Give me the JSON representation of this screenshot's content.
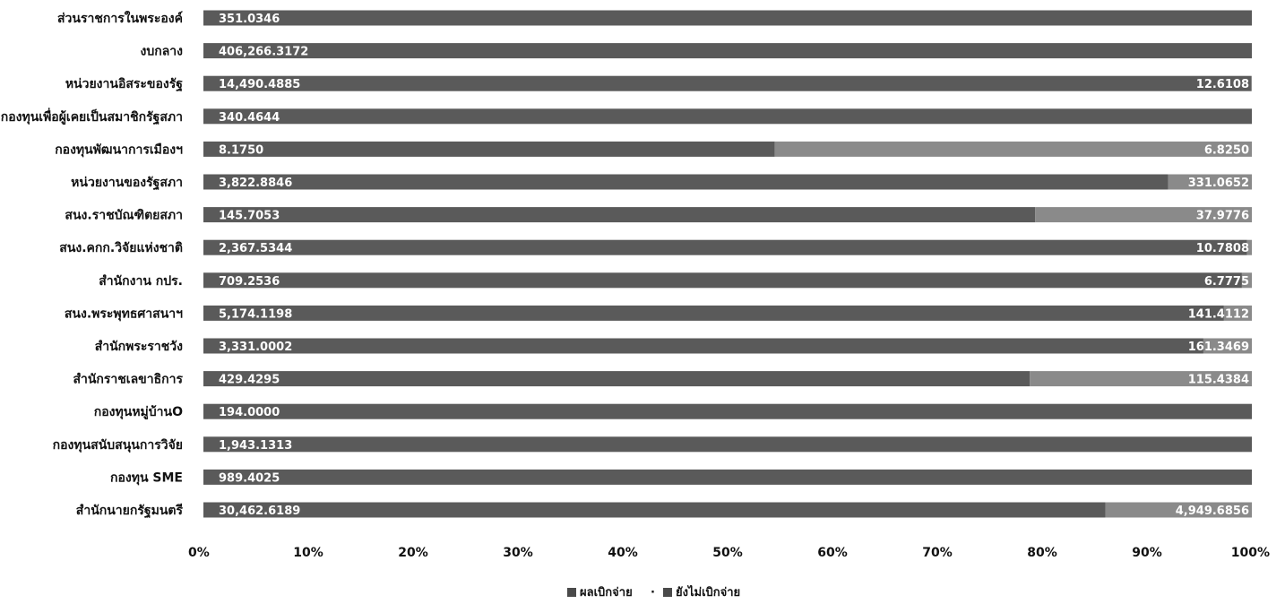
{
  "chart_data": {
    "type": "bar",
    "orientation": "horizontal",
    "stacking": "percent",
    "categories": [
      "ส่วนราชการในพระองค์",
      "งบกลาง",
      "หน่วยงานอิสระของรัฐ",
      "กองทุนเพื่อผู้เคยเป็นสมาชิกรัฐสภา",
      "กองทุนพัฒนาการเมืองฯ",
      "หน่วยงานของรัฐสภา",
      "สนง.ราชบัณฑิตยสภา",
      "สนง.คกก.วิจัยแห่งชาติ",
      "สำนักงาน กปร.",
      "สนง.พระพุทธศาสนาฯ",
      "สำนักพระราชวัง",
      "สำนักราชเลขาธิการ",
      "กองทุนหมู่บ้านO",
      "กองทุนสนับสนุนการวิจัย",
      "กองทุน SME",
      "สำนักนายกรัฐมนตรี"
    ],
    "series": [
      {
        "name": "ผลเบิกจ่าย",
        "color": "#5a5a5a",
        "values": [
          351.0346,
          406266.3172,
          14490.4885,
          340.4644,
          8.175,
          3822.8846,
          145.7053,
          2367.5344,
          709.2536,
          5174.1198,
          3331.0002,
          429.4295,
          194.0,
          1943.1313,
          989.4025,
          30462.6189
        ],
        "labels": [
          "351.0346",
          "406,266.3172",
          "14,490.4885",
          "340.4644",
          "8.1750",
          "3,822.8846",
          "145.7053",
          "2,367.5344",
          "709.2536",
          "5,174.1198",
          "3,331.0002",
          "429.4295",
          "194.0000",
          "1,943.1313",
          "989.4025",
          "30,462.6189"
        ]
      },
      {
        "name": "ยังไม่เบิกจ่าย",
        "color": "#8a8a8a",
        "values": [
          0,
          0,
          12.6108,
          0,
          6.825,
          331.0652,
          37.9776,
          10.7808,
          6.7775,
          141.4112,
          161.3469,
          115.4384,
          0,
          0,
          0,
          4949.6856
        ],
        "labels": [
          "",
          "",
          "12.6108",
          "",
          "6.8250",
          "331.0652",
          "37.9776",
          "10.7808",
          "6.7775",
          "141.4112",
          "161.3469",
          "115.4384",
          "",
          "",
          "",
          "4,949.6856"
        ]
      }
    ],
    "x_ticks": [
      "0%",
      "10%",
      "20%",
      "30%",
      "40%",
      "50%",
      "60%",
      "70%",
      "80%",
      "90%",
      "100%"
    ],
    "xlim": [
      0,
      100
    ],
    "legend_position": "bottom",
    "legend_separator": "·",
    "grid": false
  }
}
